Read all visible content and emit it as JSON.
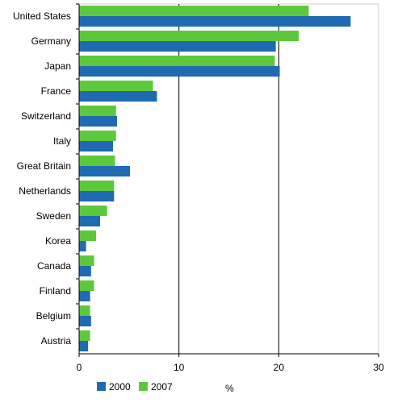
{
  "chart_data": {
    "type": "bar",
    "orientation": "horizontal",
    "title": "",
    "xlabel": "",
    "ylabel": "",
    "unit_label": "%",
    "categories": [
      "United States",
      "Germany",
      "Japan",
      "France",
      "Switzerland",
      "Italy",
      "Great Britain",
      "Netherlands",
      "Sweden",
      "Korea",
      "Canada",
      "Finland",
      "Belgium",
      "Austria"
    ],
    "series": [
      {
        "name": "2007",
        "color": "#5cc93c",
        "values": [
          23.0,
          22.0,
          19.6,
          7.4,
          3.7,
          3.7,
          3.6,
          3.5,
          2.8,
          1.7,
          1.5,
          1.5,
          1.1,
          1.1
        ]
      },
      {
        "name": "2000",
        "color": "#1f6ab0",
        "values": [
          27.2,
          19.7,
          20.1,
          7.8,
          3.8,
          3.4,
          5.1,
          3.5,
          2.1,
          0.7,
          1.2,
          1.1,
          1.2,
          0.9
        ]
      }
    ],
    "xlim": [
      0,
      30
    ],
    "x_ticks": [
      "0",
      "10",
      "20",
      "30"
    ],
    "grid": true,
    "legend": {
      "placement": "bottom",
      "entries": [
        {
          "label": "2000",
          "color": "#1f6ab0"
        },
        {
          "label": "2007",
          "color": "#5cc93c"
        }
      ]
    }
  }
}
